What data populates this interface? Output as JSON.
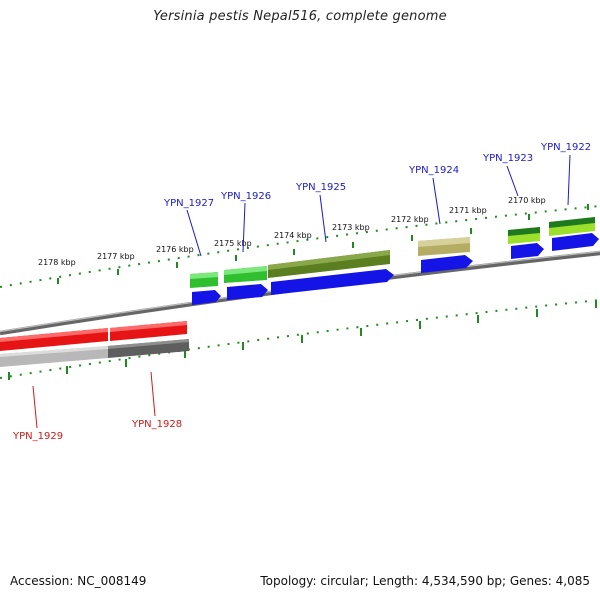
{
  "title": "Yersinia pestis Nepal516, complete genome",
  "accession": "Accession: NC_008149",
  "summary": "Topology: circular; Length: 4,534,590 bp; Genes: 4,085",
  "colors": {
    "backbone": "#7a7a7a",
    "tick": "#1f8a1f",
    "forward_label": "#1a1acc",
    "reverse_label": "#cc1a1a",
    "cds_blue": "#1414e6",
    "reverse_red": "#e61414"
  },
  "ticks": [
    {
      "label": "2178 kbp"
    },
    {
      "label": "2177 kbp"
    },
    {
      "label": "2176 kbp"
    },
    {
      "label": "2175 kbp"
    },
    {
      "label": "2174 kbp"
    },
    {
      "label": "2173 kbp"
    },
    {
      "label": "2172 kbp"
    },
    {
      "label": "2171 kbp"
    },
    {
      "label": "2170 kbp"
    }
  ],
  "genes_forward": [
    {
      "name": "YPN_1927"
    },
    {
      "name": "YPN_1926"
    },
    {
      "name": "YPN_1925"
    },
    {
      "name": "YPN_1924"
    },
    {
      "name": "YPN_1923"
    },
    {
      "name": "YPN_1922"
    }
  ],
  "genes_reverse": [
    {
      "name": "YPN_1929"
    },
    {
      "name": "YPN_1928"
    }
  ]
}
